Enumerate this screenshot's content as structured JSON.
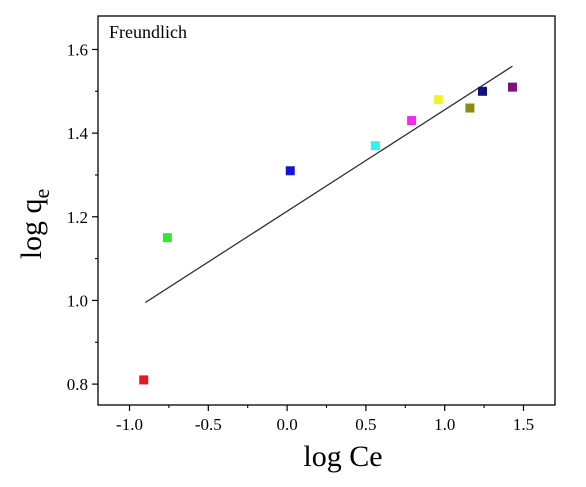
{
  "chart_data": {
    "type": "scatter",
    "annotation": "Freundlich",
    "xlabel": "log Ce",
    "ylabel": {
      "main": "log q",
      "sub": "e"
    },
    "xlim": [
      -1.2,
      1.7
    ],
    "ylim": [
      0.75,
      1.68
    ],
    "xticks": [
      -1.0,
      -0.5,
      0.0,
      0.5,
      1.0,
      1.5
    ],
    "xtick_labels": [
      "-1.0",
      "-0.5",
      "0.0",
      "0.5",
      "1.0",
      "1.5"
    ],
    "yticks": [
      0.8,
      1.0,
      1.2,
      1.4,
      1.6
    ],
    "ytick_labels": [
      "0.8",
      "1.0",
      "1.2",
      "1.4",
      "1.6"
    ],
    "grid": false,
    "points": [
      {
        "x": -0.91,
        "y": 0.81,
        "color": "#e8191d"
      },
      {
        "x": -0.76,
        "y": 1.15,
        "color": "#32e632"
      },
      {
        "x": 0.02,
        "y": 1.31,
        "color": "#1515d6"
      },
      {
        "x": 0.56,
        "y": 1.37,
        "color": "#30f0f0"
      },
      {
        "x": 0.79,
        "y": 1.43,
        "color": "#f02af0"
      },
      {
        "x": 0.96,
        "y": 1.48,
        "color": "#f2f22a"
      },
      {
        "x": 1.16,
        "y": 1.46,
        "color": "#8c8c12"
      },
      {
        "x": 1.24,
        "y": 1.5,
        "color": "#12127a"
      },
      {
        "x": 1.43,
        "y": 1.51,
        "color": "#7a127a"
      }
    ],
    "fit_line": {
      "x": [
        -0.9,
        1.43
      ],
      "y": [
        0.995,
        1.56
      ],
      "color": "#333333"
    }
  }
}
